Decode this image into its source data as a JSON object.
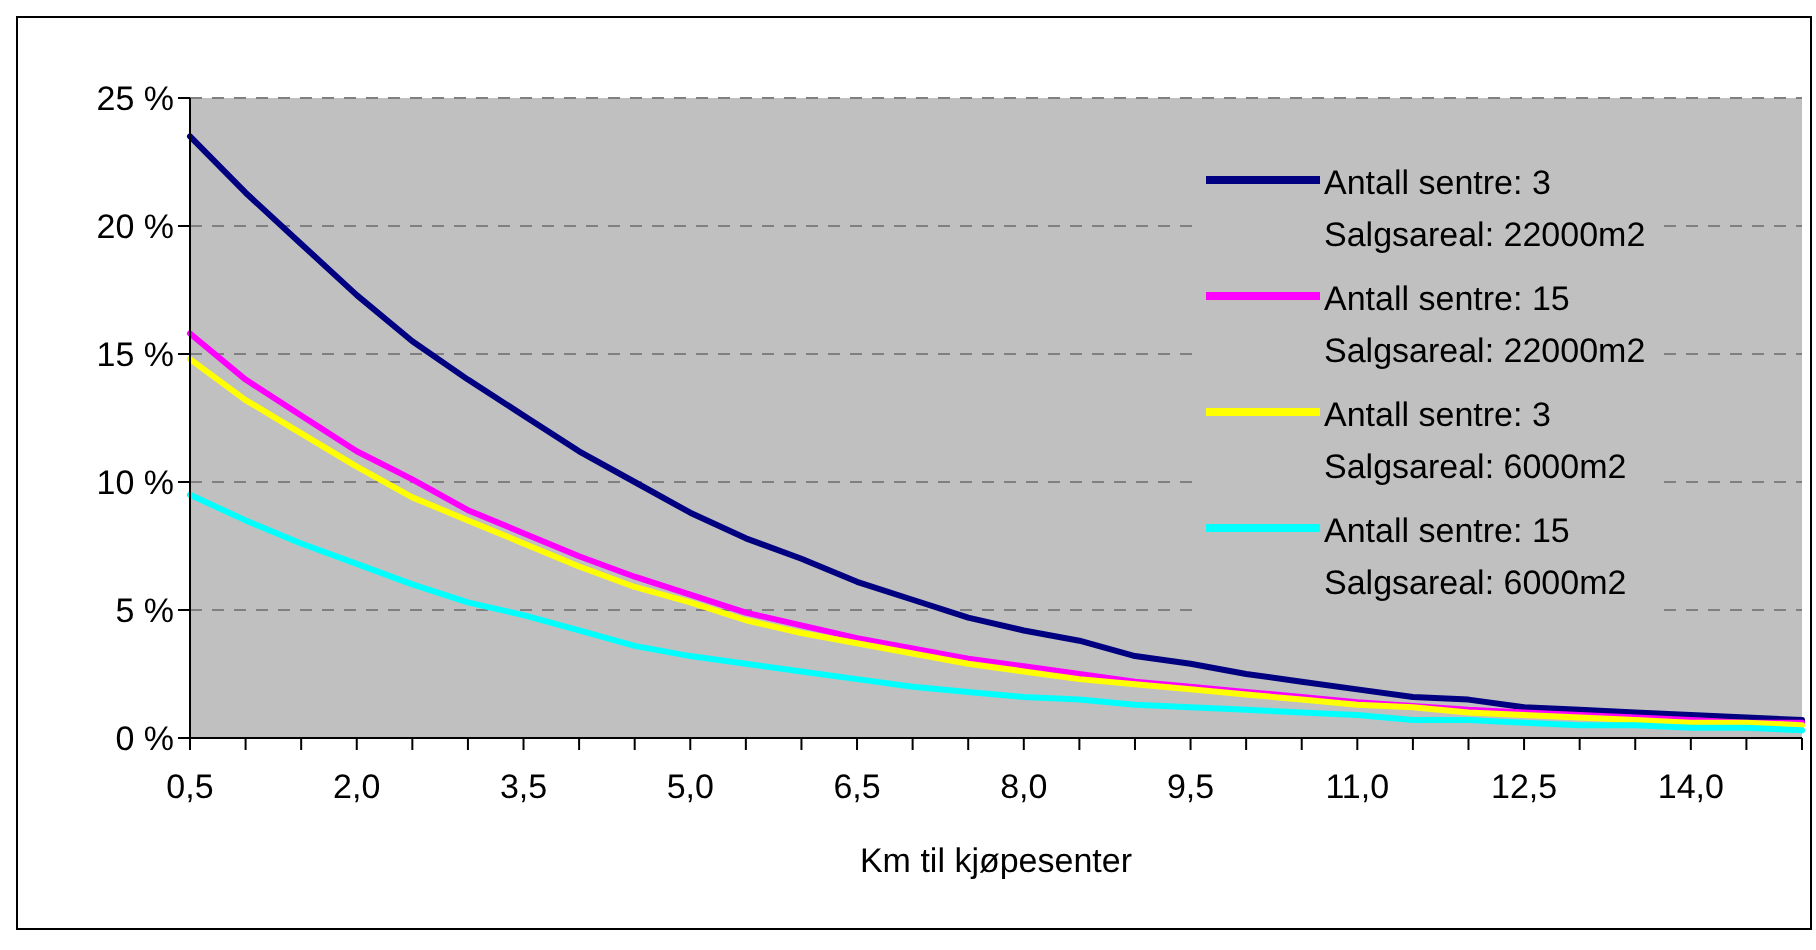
{
  "chart_data": {
    "type": "line",
    "xlabel": "Km til kjøpesenter",
    "categories": [
      "0,5",
      null,
      null,
      "2,0",
      null,
      null,
      "3,5",
      null,
      null,
      "5,0",
      null,
      null,
      "6,5",
      null,
      null,
      "8,0",
      null,
      null,
      "9,5",
      null,
      null,
      "11,0",
      null,
      null,
      "12,5",
      null,
      null,
      "14,0",
      null,
      null
    ],
    "series": [
      {
        "name": "Antall sentre: 3\nSalgsareal: 22000m2",
        "color": "#000080",
        "values": [
          23.5,
          21.3,
          19.3,
          17.3,
          15.5,
          14.0,
          12.6,
          11.2,
          10.0,
          8.8,
          7.8,
          7.0,
          6.1,
          5.4,
          4.7,
          4.2,
          3.8,
          3.2,
          2.9,
          2.5,
          2.2,
          1.9,
          1.6,
          1.5,
          1.2,
          1.1,
          1.0,
          0.9,
          0.8,
          0.7
        ]
      },
      {
        "name": "Antall sentre: 15\nSalgsareal: 22000m2",
        "color": "#ff00ff",
        "values": [
          15.8,
          14.0,
          12.6,
          11.2,
          10.1,
          8.9,
          8.0,
          7.1,
          6.3,
          5.6,
          4.9,
          4.4,
          3.9,
          3.5,
          3.1,
          2.8,
          2.5,
          2.2,
          2.0,
          1.8,
          1.6,
          1.4,
          null,
          1.1,
          1.0,
          0.9,
          0.8,
          0.7,
          0.6,
          0.6
        ]
      },
      {
        "name": "Antall sentre: 3\nSalgsareal: 6000m2",
        "color": "#ffff00",
        "values": [
          14.8,
          13.2,
          11.9,
          10.6,
          9.4,
          8.5,
          7.6,
          6.7,
          5.9,
          5.3,
          4.6,
          4.1,
          3.7,
          3.3,
          2.9,
          2.6,
          2.3,
          2.1,
          1.9,
          1.7,
          1.5,
          1.3,
          1.2,
          1.0,
          0.9,
          0.8,
          0.7,
          0.6,
          0.6,
          0.5
        ]
      },
      {
        "name": "Antall sentre: 15\nSalgsareal: 6000m2",
        "color": "#00ffff",
        "values": [
          9.5,
          8.5,
          7.6,
          6.8,
          6.0,
          5.3,
          4.8,
          4.2,
          3.6,
          3.2,
          2.9,
          2.6,
          2.3,
          2.0,
          1.8,
          1.6,
          1.5,
          1.3,
          1.2,
          1.1,
          1.0,
          0.9,
          0.7,
          0.7,
          0.6,
          0.5,
          0.5,
          0.4,
          0.4,
          0.3
        ]
      }
    ],
    "ylim": [
      0,
      25
    ],
    "yticks": [
      {
        "value": 0,
        "label": "0 %"
      },
      {
        "value": 5,
        "label": "5 %"
      },
      {
        "value": 10,
        "label": "10 %"
      },
      {
        "value": 15,
        "label": "15 %"
      },
      {
        "value": 20,
        "label": "20 %"
      },
      {
        "value": 25,
        "label": "25 %"
      }
    ],
    "grid": "y",
    "legend": "top right",
    "marker": "none",
    "line_style": "solid"
  }
}
